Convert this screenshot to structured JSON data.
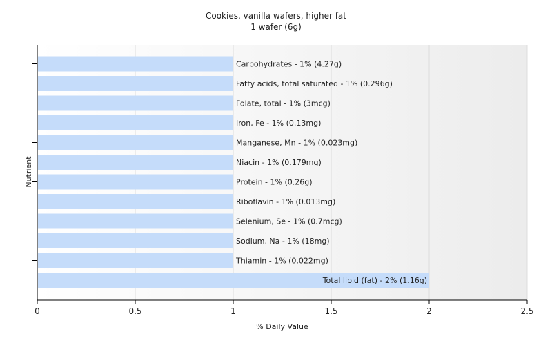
{
  "chart_data": {
    "type": "bar",
    "orientation": "horizontal",
    "title": "Cookies, vanilla wafers, higher fat",
    "subtitle": "1 wafer (6g)",
    "xlabel": "% Daily Value",
    "ylabel": "Nutrient",
    "xlim": [
      0,
      2.5
    ],
    "xticks": [
      "0",
      "0.5",
      "1",
      "1.5",
      "2",
      "2.5"
    ],
    "grid": true,
    "bar_color": "#c5dcfa",
    "categories": [
      "Carbohydrates",
      "Fatty acids, total saturated",
      "Folate, total",
      "Iron, Fe",
      "Manganese, Mn",
      "Niacin",
      "Protein",
      "Riboflavin",
      "Selenium, Se",
      "Sodium, Na",
      "Thiamin",
      "Total lipid (fat)"
    ],
    "values": [
      1,
      1,
      1,
      1,
      1,
      1,
      1,
      1,
      1,
      1,
      1,
      2
    ],
    "labels": [
      "Carbohydrates - 1% (4.27g)",
      "Fatty acids, total saturated - 1% (0.296g)",
      "Folate, total - 1% (3mcg)",
      "Iron, Fe - 1% (0.13mg)",
      "Manganese, Mn - 1% (0.023mg)",
      "Niacin - 1% (0.179mg)",
      "Protein - 1% (0.26g)",
      "Riboflavin - 1% (0.013mg)",
      "Selenium, Se - 1% (0.7mcg)",
      "Sodium, Na - 1% (18mg)",
      "Thiamin - 1% (0.022mg)",
      "Total lipid (fat) - 2% (1.16g)"
    ]
  }
}
